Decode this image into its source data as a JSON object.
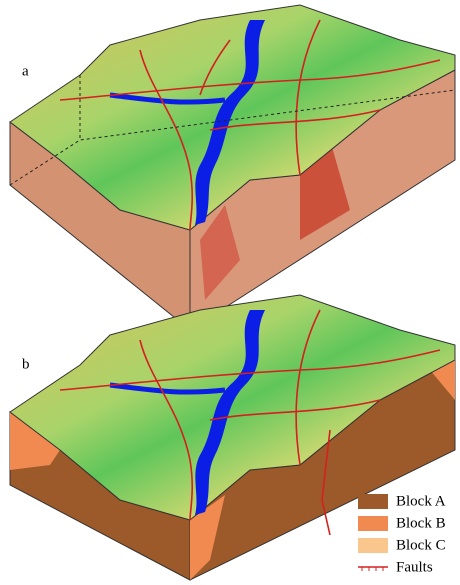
{
  "panels": [
    {
      "label": "a"
    },
    {
      "label": "b"
    }
  ],
  "legend": {
    "items": [
      {
        "label": "Block A",
        "color": "#9c5a2a"
      },
      {
        "label": "Block B",
        "color": "#f08a50"
      },
      {
        "label": "Block C",
        "color": "#f9c68e"
      },
      {
        "label": "Faults",
        "color": "#d42020"
      }
    ]
  }
}
